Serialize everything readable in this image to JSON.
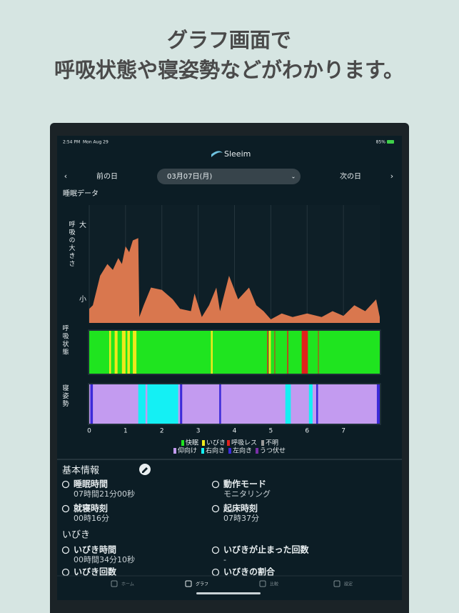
{
  "header": {
    "line1": "グラフ画面で",
    "line2": "呼吸状態や寝姿勢などがわかります。"
  },
  "status_bar": {
    "time": "2:54 PM",
    "date": "Mon Aug 29",
    "battery": "85%"
  },
  "app": {
    "logo": "Sleeim"
  },
  "nav": {
    "prev": "前の日",
    "date": "03月07日(月)",
    "next": "次の日"
  },
  "section_title": "睡眠データ",
  "chart_data": [
    {
      "type": "area",
      "y_label": "呼吸の大きさ",
      "color": "#d9774e",
      "x": [
        0,
        0.1,
        0.3,
        0.5,
        0.65,
        0.8,
        0.9,
        1.0,
        1.1,
        1.2,
        1.35,
        1.38,
        1.5,
        1.7,
        2.0,
        2.3,
        2.5,
        2.8,
        2.9,
        3.1,
        3.3,
        3.5,
        3.6,
        3.85,
        4.1,
        4.4,
        4.6,
        4.8,
        5.0,
        5.3,
        5.6,
        6.0,
        6.4,
        6.7,
        7.0,
        7.3,
        7.6,
        7.9,
        8.0
      ],
      "values": [
        0.12,
        0.15,
        0.4,
        0.5,
        0.45,
        0.55,
        0.5,
        0.65,
        0.6,
        0.7,
        0.72,
        0.05,
        0.15,
        0.3,
        0.28,
        0.2,
        0.12,
        0.1,
        0.25,
        0.05,
        0.15,
        0.3,
        0.1,
        0.4,
        0.2,
        0.3,
        0.15,
        0.1,
        0.03,
        0.08,
        0.05,
        0.08,
        0.05,
        0.1,
        0.06,
        0.15,
        0.1,
        0.2,
        0.05
      ],
      "xlim": [
        0,
        8
      ],
      "ylim": [
        0,
        1
      ],
      "xticks": [
        0,
        1,
        2,
        3,
        4,
        5,
        6,
        7
      ],
      "yticks": [
        {
          "value": 0.2,
          "label": "小"
        },
        {
          "value": 0.83,
          "label": "大"
        }
      ],
      "grid": true
    },
    {
      "type": "band",
      "y_label": "呼吸状態",
      "xlim": [
        0,
        8
      ],
      "series": [
        {
          "name": "快眠",
          "color": "#1fe41f",
          "segments": [
            [
              0,
              8
            ]
          ]
        },
        {
          "name": "いびき",
          "color": "#efe81c",
          "segments": [
            [
              0.55,
              0.6
            ],
            [
              0.7,
              0.78
            ],
            [
              0.9,
              1.0
            ],
            [
              1.05,
              1.12
            ],
            [
              1.2,
              1.3
            ],
            [
              3.35,
              3.4
            ],
            [
              4.95,
              5.0
            ]
          ]
        },
        {
          "name": "呼吸レス",
          "color": "#e1211b",
          "segments": [
            [
              4.9,
              4.93
            ],
            [
              5.1,
              5.12
            ],
            [
              5.45,
              5.48
            ],
            [
              5.85,
              6.02
            ],
            [
              6.3,
              6.32
            ]
          ]
        },
        {
          "name": "不明",
          "color": "#9a9a9a",
          "segments": []
        }
      ]
    },
    {
      "type": "band",
      "y_label": "寝姿勢",
      "xlim": [
        0,
        8
      ],
      "series": [
        {
          "name": "仰向け",
          "color": "#c39bf0",
          "segments": [
            [
              0,
              8
            ]
          ]
        },
        {
          "name": "右向き",
          "color": "#14f0f4",
          "segments": [
            [
              1.35,
              1.55
            ],
            [
              1.6,
              2.45
            ],
            [
              5.4,
              5.55
            ],
            [
              6.05,
              6.15
            ]
          ]
        },
        {
          "name": "左向き",
          "color": "#3b2ad8",
          "segments": [
            [
              0.03,
              0.1
            ],
            [
              2.5,
              2.56
            ],
            [
              3.58,
              3.63
            ],
            [
              6.25,
              6.3
            ],
            [
              7.92,
              8.0
            ]
          ]
        },
        {
          "name": "うつ伏せ",
          "color": "#7a2fa8",
          "segments": []
        }
      ]
    }
  ],
  "basic_info": {
    "title": "基本情報",
    "items": [
      {
        "label": "睡眠時間",
        "value": "07時間21分00秒"
      },
      {
        "label": "動作モード",
        "value": "モニタリング"
      },
      {
        "label": "就寝時刻",
        "value": "00時16分"
      },
      {
        "label": "起床時刻",
        "value": "07時37分"
      }
    ]
  },
  "snore": {
    "title": "いびき",
    "items": [
      {
        "label": "いびき時間",
        "value": "00時間34分10秒"
      },
      {
        "label": "いびきが止まった回数",
        "value": "-"
      },
      {
        "label": "いびき回数"
      },
      {
        "label": "いびきの割合"
      }
    ]
  },
  "tabs": [
    "ホーム",
    "グラフ",
    "比較",
    "設定"
  ]
}
